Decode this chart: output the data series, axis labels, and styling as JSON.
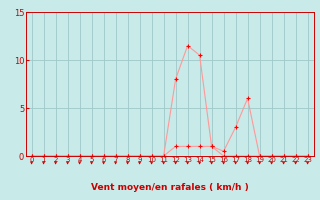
{
  "x": [
    0,
    1,
    2,
    3,
    4,
    5,
    6,
    7,
    8,
    9,
    10,
    11,
    12,
    13,
    14,
    15,
    16,
    17,
    18,
    19,
    20,
    21,
    22,
    23
  ],
  "y_moyen": [
    0,
    0,
    0,
    0,
    0,
    0,
    0,
    0,
    0,
    0,
    0,
    0,
    1,
    1,
    1,
    1,
    0,
    0,
    0,
    0,
    0,
    0,
    0,
    0
  ],
  "y_rafales": [
    0,
    0,
    0,
    0,
    0,
    0,
    0,
    0,
    0,
    0,
    0,
    0,
    8,
    11.5,
    10.5,
    1,
    0.5,
    3,
    6,
    0,
    0,
    0,
    0,
    0
  ],
  "line_color": "#FF9999",
  "marker_color": "#FF0000",
  "bg_color": "#C8EAE8",
  "grid_color": "#A0C8C8",
  "xlabel": "Vent moyen/en rafales ( km/h )",
  "xlim": [
    -0.5,
    23.5
  ],
  "ylim": [
    0,
    15
  ],
  "yticks": [
    0,
    5,
    10,
    15
  ],
  "xticks": [
    0,
    1,
    2,
    3,
    4,
    5,
    6,
    7,
    8,
    9,
    10,
    11,
    12,
    13,
    14,
    15,
    16,
    17,
    18,
    19,
    20,
    21,
    22,
    23
  ]
}
